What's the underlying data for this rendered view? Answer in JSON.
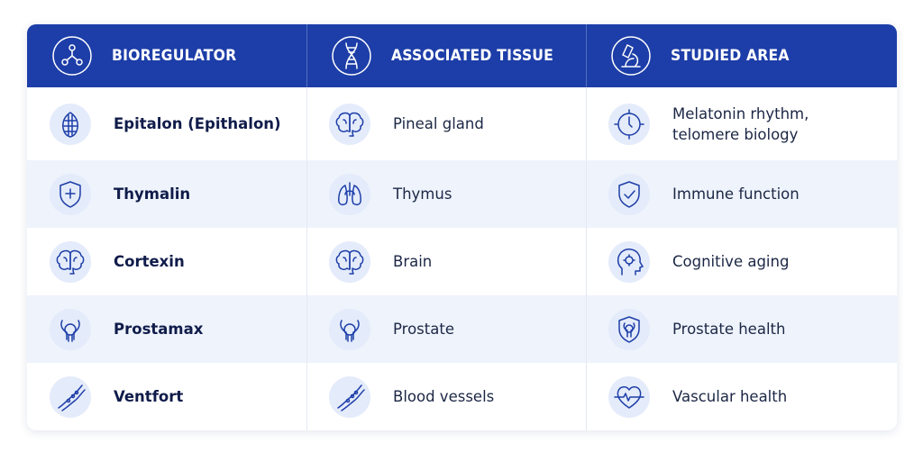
{
  "header": {
    "columns": [
      "BIOREGULATOR",
      "ASSOCIATED TISSUE",
      "STUDIED AREA"
    ]
  },
  "table": {
    "rows": [
      [
        "Epitalon (Epithalon)",
        "Pineal gland",
        "Melatonin rhythm, telomere biology"
      ],
      [
        "Thymalin",
        "Thymus",
        "Immune function"
      ],
      [
        "Cortexin",
        "Brain",
        "Cognitive aging"
      ],
      [
        "Prostamax",
        "Prostate",
        "Prostate health"
      ],
      [
        "Ventfort",
        "Blood vessels",
        "Vascular health"
      ]
    ]
  }
}
